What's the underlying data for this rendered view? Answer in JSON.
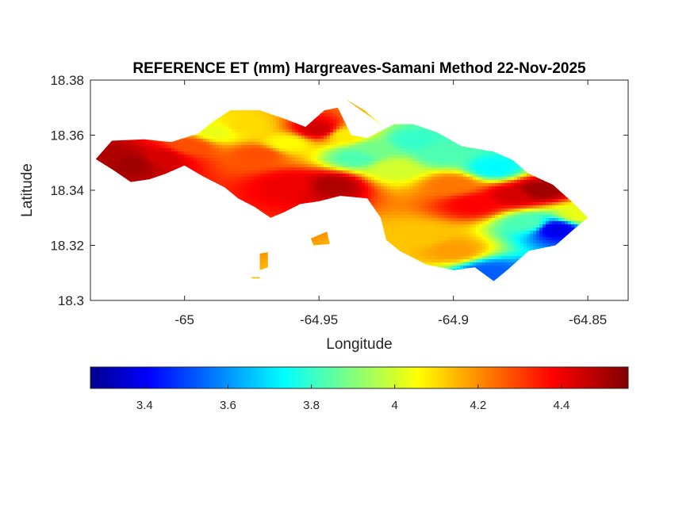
{
  "chart_data": {
    "type": "heatmap",
    "title": "REFERENCE ET (mm) Hargreaves-Samani Method  22-Nov-2025",
    "xlabel": "Longitude",
    "ylabel": "Latitude",
    "xlim": [
      -65.035,
      -64.835
    ],
    "ylim": [
      18.3,
      18.38
    ],
    "x_ticks": [
      {
        "value": -65.0,
        "label": "-65"
      },
      {
        "value": -64.95,
        "label": "-64.95"
      },
      {
        "value": -64.9,
        "label": "-64.9"
      },
      {
        "value": -64.85,
        "label": "-64.85"
      }
    ],
    "y_ticks": [
      {
        "value": 18.3,
        "label": "18.3"
      },
      {
        "value": 18.32,
        "label": "18.32"
      },
      {
        "value": 18.34,
        "label": "18.34"
      },
      {
        "value": 18.36,
        "label": "18.36"
      },
      {
        "value": 18.38,
        "label": "18.38"
      }
    ],
    "grid": false,
    "colormap": "jet",
    "color_range": [
      3.27,
      4.56
    ],
    "colorbar": {
      "placement": "bottom",
      "ticks": [
        {
          "value": 3.4,
          "label": "3.4"
        },
        {
          "value": 3.6,
          "label": "3.6"
        },
        {
          "value": 3.8,
          "label": "3.8"
        },
        {
          "value": 4.0,
          "label": "4"
        },
        {
          "value": 4.2,
          "label": "4.2"
        },
        {
          "value": 4.4,
          "label": "4.4"
        }
      ]
    },
    "regions": [
      {
        "name": "main island",
        "outline": [
          [
            -65.033,
            18.3513
          ],
          [
            -65.027,
            18.358
          ],
          [
            -65.015,
            18.3585
          ],
          [
            -65.005,
            18.3575
          ],
          [
            -64.995,
            18.3605
          ],
          [
            -64.99,
            18.3645
          ],
          [
            -64.983,
            18.369
          ],
          [
            -64.972,
            18.369
          ],
          [
            -64.963,
            18.366
          ],
          [
            -64.955,
            18.363
          ],
          [
            -64.948,
            18.369
          ],
          [
            -64.943,
            18.37
          ],
          [
            -64.938,
            18.36
          ],
          [
            -64.932,
            18.359
          ],
          [
            -64.922,
            18.364
          ],
          [
            -64.915,
            18.364
          ],
          [
            -64.906,
            18.361
          ],
          [
            -64.897,
            18.356
          ],
          [
            -64.885,
            18.354
          ],
          [
            -64.878,
            18.351
          ],
          [
            -64.872,
            18.346
          ],
          [
            -64.863,
            18.342
          ],
          [
            -64.855,
            18.335
          ],
          [
            -64.85,
            18.33
          ],
          [
            -64.855,
            18.326
          ],
          [
            -64.862,
            18.32
          ],
          [
            -64.872,
            18.318
          ],
          [
            -64.88,
            18.311
          ],
          [
            -64.885,
            18.307
          ],
          [
            -64.892,
            18.312
          ],
          [
            -64.9,
            18.311
          ],
          [
            -64.91,
            18.313
          ],
          [
            -64.92,
            18.318
          ],
          [
            -64.925,
            18.322
          ],
          [
            -64.927,
            18.33
          ],
          [
            -64.932,
            18.337
          ],
          [
            -64.942,
            18.338
          ],
          [
            -64.95,
            18.336
          ],
          [
            -64.957,
            18.335
          ],
          [
            -64.963,
            18.332
          ],
          [
            -64.968,
            18.33
          ],
          [
            -64.974,
            18.334
          ],
          [
            -64.98,
            18.337
          ],
          [
            -64.985,
            18.341
          ],
          [
            -64.993,
            18.345
          ],
          [
            -65.0,
            18.349
          ],
          [
            -65.007,
            18.346
          ],
          [
            -65.013,
            18.344
          ],
          [
            -65.02,
            18.343
          ],
          [
            -65.026,
            18.347
          ],
          [
            -65.033,
            18.3513
          ]
        ]
      },
      {
        "name": "islet 1",
        "outline": [
          [
            -64.953,
            18.3225
          ],
          [
            -64.947,
            18.325
          ],
          [
            -64.946,
            18.3205
          ],
          [
            -64.952,
            18.32
          ]
        ]
      },
      {
        "name": "islet 2",
        "outline": [
          [
            -64.972,
            18.317
          ],
          [
            -64.969,
            18.3175
          ],
          [
            -64.969,
            18.312
          ],
          [
            -64.972,
            18.311
          ]
        ]
      },
      {
        "name": "islet 3",
        "outline": [
          [
            -64.975,
            18.3085
          ],
          [
            -64.972,
            18.3085
          ],
          [
            -64.972,
            18.308
          ],
          [
            -64.975,
            18.308
          ]
        ]
      },
      {
        "name": "islet 4",
        "outline": [
          [
            -64.94,
            18.373
          ],
          [
            -64.93,
            18.366
          ],
          [
            -64.925,
            18.362
          ],
          [
            -64.933,
            18.369
          ]
        ]
      }
    ],
    "field_centers": [
      {
        "lon": -65.02,
        "lat": 18.35,
        "value": 4.52
      },
      {
        "lon": -65.028,
        "lat": 18.352,
        "value": 4.5
      },
      {
        "lon": -65.008,
        "lat": 18.352,
        "value": 4.45
      },
      {
        "lon": -64.998,
        "lat": 18.356,
        "value": 4.3
      },
      {
        "lon": -64.988,
        "lat": 18.361,
        "value": 4.05
      },
      {
        "lon": -64.978,
        "lat": 18.363,
        "value": 4.12
      },
      {
        "lon": -64.972,
        "lat": 18.353,
        "value": 4.3
      },
      {
        "lon": -64.962,
        "lat": 18.357,
        "value": 4.08
      },
      {
        "lon": -64.96,
        "lat": 18.342,
        "value": 4.42
      },
      {
        "lon": -64.95,
        "lat": 18.362,
        "value": 4.46
      },
      {
        "lon": -64.945,
        "lat": 18.342,
        "value": 4.5
      },
      {
        "lon": -64.936,
        "lat": 18.352,
        "value": 3.85
      },
      {
        "lon": -64.93,
        "lat": 18.355,
        "value": 3.9
      },
      {
        "lon": -64.922,
        "lat": 18.348,
        "value": 4.02
      },
      {
        "lon": -64.915,
        "lat": 18.358,
        "value": 3.82
      },
      {
        "lon": -64.905,
        "lat": 18.353,
        "value": 3.85
      },
      {
        "lon": -64.9,
        "lat": 18.342,
        "value": 4.25
      },
      {
        "lon": -64.892,
        "lat": 18.335,
        "value": 4.4
      },
      {
        "lon": -64.885,
        "lat": 18.348,
        "value": 3.75
      },
      {
        "lon": -64.878,
        "lat": 18.338,
        "value": 4.45
      },
      {
        "lon": -64.868,
        "lat": 18.34,
        "value": 4.52
      },
      {
        "lon": -64.872,
        "lat": 18.328,
        "value": 3.85
      },
      {
        "lon": -64.862,
        "lat": 18.326,
        "value": 3.4
      },
      {
        "lon": -64.912,
        "lat": 18.323,
        "value": 4.15
      },
      {
        "lon": -64.9,
        "lat": 18.318,
        "value": 4.2
      },
      {
        "lon": -64.887,
        "lat": 18.31,
        "value": 3.55
      },
      {
        "lon": -64.94,
        "lat": 18.36,
        "value": 4.1
      },
      {
        "lon": -64.853,
        "lat": 18.331,
        "value": 4.05
      }
    ]
  }
}
